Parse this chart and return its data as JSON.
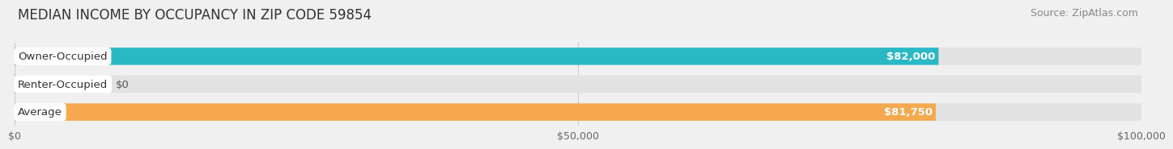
{
  "title": "MEDIAN INCOME BY OCCUPANCY IN ZIP CODE 59854",
  "source": "Source: ZipAtlas.com",
  "categories": [
    "Owner-Occupied",
    "Renter-Occupied",
    "Average"
  ],
  "values": [
    82000,
    0,
    81750
  ],
  "bar_colors": [
    "#2ab8c5",
    "#b89ec8",
    "#f5a84e"
  ],
  "value_labels": [
    "$82,000",
    "$0",
    "$81,750"
  ],
  "xlim": [
    0,
    100000
  ],
  "xticks": [
    0,
    50000,
    100000
  ],
  "xtick_labels": [
    "$0",
    "$50,000",
    "$100,000"
  ],
  "bar_height": 0.62,
  "background_color": "#f0f0f0",
  "bar_bg_color": "#e2e2e2",
  "title_fontsize": 12,
  "source_fontsize": 9,
  "label_fontsize": 9.5,
  "value_fontsize": 9.5,
  "tick_fontsize": 9,
  "renter_small_val": 8000
}
